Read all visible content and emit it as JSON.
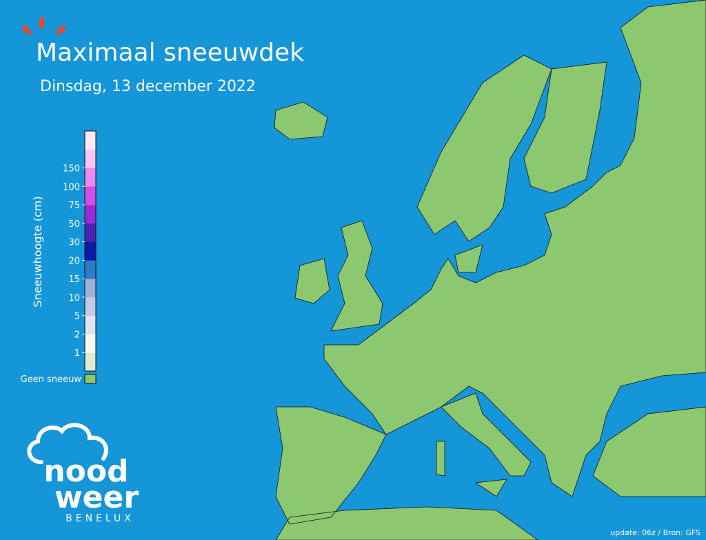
{
  "header": {
    "title": "Maximaal sneeuwdek",
    "subtitle": "Dinsdag, 13 december 2022"
  },
  "legend": {
    "label": "Sneeuwhoogte (cm)",
    "ticks": [
      1,
      2,
      5,
      10,
      15,
      20,
      30,
      50,
      75,
      100,
      150
    ],
    "colors": [
      "#dcebd6",
      "#f3fbf3",
      "#dfe4f3",
      "#c0cbe8",
      "#9eb0dc",
      "#2f7cc6",
      "#0a1aa6",
      "#4a22b4",
      "#9a2bd8",
      "#d44de6",
      "#e98bee",
      "#f6c4f6",
      "#fde9fd"
    ],
    "no_snow": "Geen sneeuw",
    "no_snow_color": "#8cc870"
  },
  "logo": {
    "line1": "nood",
    "line2": "weer",
    "tagline": "BENELUX"
  },
  "footer": "update: 06z / Bron: GFS"
}
